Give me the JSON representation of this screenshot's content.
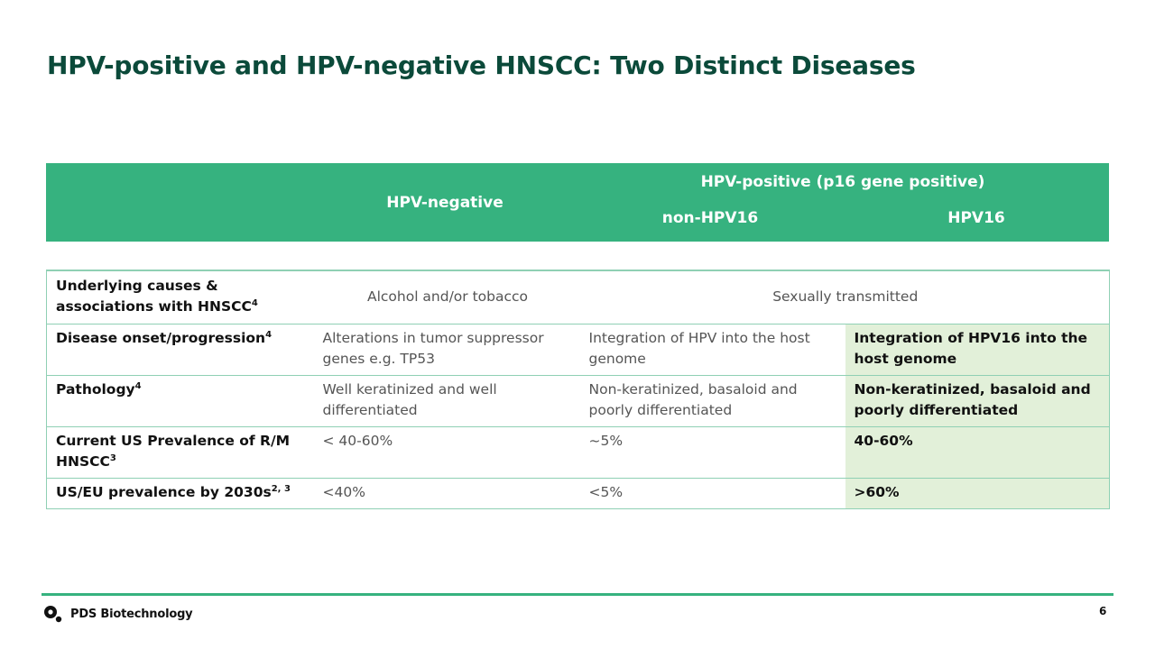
{
  "title": "HPV-positive and HPV-negative HNSCC: Two Distinct Diseases",
  "header": {
    "hpv_negative": "HPV-negative",
    "hpv_positive": "HPV-positive (p16 gene positive)",
    "non_hpv16": "non-HPV16",
    "hpv16": "HPV16"
  },
  "rows": [
    {
      "label": "Underlying causes & associations with HNSCC",
      "label_sup": "4",
      "hpv_negative": "Alcohol and/or tobacco",
      "hpv_positive": "Sexually transmitted"
    },
    {
      "label": "Disease onset/progression",
      "label_sup": "4",
      "hpv_negative": "Alterations in tumor suppressor genes e.g. TP53",
      "non_hpv16": "Integration of HPV into the host genome",
      "hpv16": "Integration of HPV16 into the host genome"
    },
    {
      "label": "Pathology",
      "label_sup": "4",
      "hpv_negative": "Well keratinized and well differentiated",
      "non_hpv16": "Non-keratinized, basaloid and poorly differentiated",
      "hpv16": "Non-keratinized, basaloid and poorly differentiated"
    },
    {
      "label": "Current US Prevalence of R/M HNSCC",
      "label_sup": "3",
      "hpv_negative": "< 40-60%",
      "non_hpv16": "~5%",
      "hpv16": "40-60%"
    },
    {
      "label": "US/EU prevalence by 2030s",
      "label_sup": "2, 3",
      "hpv_negative": "<40%",
      "non_hpv16": "<5%",
      "hpv16": ">60%"
    }
  ],
  "footer": {
    "logo_text": "PDS Biotechnology",
    "page_number": "6"
  },
  "colors": {
    "title": "#0b4a3a",
    "header_bg": "#36b27f",
    "highlight": "#e2f0d9",
    "border": "#8fd0b4"
  }
}
